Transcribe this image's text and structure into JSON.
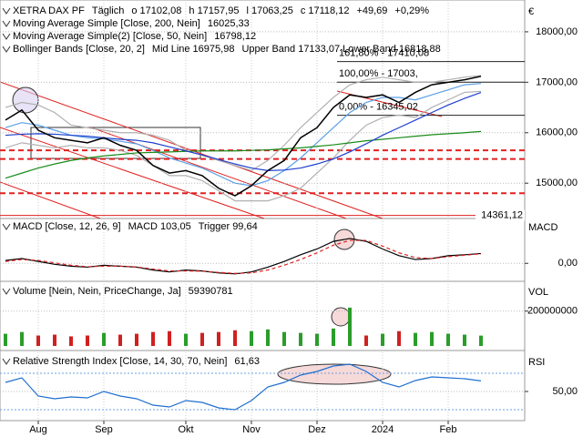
{
  "chart_data": [
    {
      "type": "line",
      "axis_label": "€",
      "categories": [
        null,
        null,
        "Aug",
        null,
        null,
        null,
        "Sep",
        null,
        null,
        null,
        null,
        "Okt",
        null,
        null,
        null,
        "Nov",
        null,
        null,
        null,
        "Dez",
        null,
        null,
        null,
        "2024",
        null,
        null,
        null,
        "Feb",
        null,
        null
      ],
      "legend": [
        [
          {
            "text": "XETRA DAX PF",
            "color": "#000000"
          },
          {
            "text": "Täglich",
            "color": "#000000"
          },
          {
            "text": "o 17102,08",
            "color": "#1a8c1a"
          },
          {
            "text": "h 17157,95",
            "color": "#1a8c1a"
          },
          {
            "text": "l 17063,25",
            "color": "#1a8c1a"
          },
          {
            "text": "c 17118,12",
            "color": "#1a8c1a"
          },
          {
            "text": "+49,69",
            "color": "#1a8c1a"
          },
          {
            "text": "+0,29%",
            "color": "#1a8c1a"
          }
        ],
        [
          {
            "text": "Moving Average Simple  [Close, 200, Nein]",
            "color": "#000000"
          },
          {
            "text": "16025,33",
            "color": "#1a8c1a"
          }
        ],
        [
          {
            "text": "Moving Average Simple(2)  [Close, 50, Nein]",
            "color": "#000000"
          },
          {
            "text": "16798,12",
            "color": "#1f3fcf"
          }
        ],
        [
          {
            "text": "Bollinger Bands  [Close, 20, 2]",
            "color": "#000000"
          },
          {
            "text": "Mid Line  16975,98",
            "color": "#3a8ee6"
          },
          {
            "text": "Upper Band  17133,07  Lower Band  16818,88",
            "color": "#aaaaaa"
          }
        ]
      ],
      "series": [
        {
          "color": "#b0b0b0",
          "values": [
            16500,
            16600,
            16550,
            16400,
            16150,
            16100,
            16050,
            16000,
            16000,
            15950,
            15850,
            15650,
            15550,
            15450,
            15350,
            15250,
            15450,
            15750,
            16100,
            16400,
            16700,
            16950,
            17050,
            17100,
            17050,
            17000,
            17000,
            17050,
            17100,
            17133.07
          ]
        },
        {
          "color": "#b0b0b0",
          "values": [
            15700,
            15800,
            15750,
            15700,
            15750,
            15700,
            15700,
            15650,
            15550,
            15350,
            15150,
            15150,
            15050,
            14850,
            14650,
            14650,
            14650,
            14750,
            14900,
            15200,
            15500,
            15850,
            16150,
            16300,
            16350,
            16300,
            16500,
            16650,
            16800,
            16818.88
          ]
        },
        {
          "color": "#5aa0e6",
          "values": [
            16100,
            16200,
            16150,
            16050,
            15950,
            15900,
            15880,
            15830,
            15780,
            15650,
            15500,
            15400,
            15300,
            15150,
            15000,
            14950,
            15050,
            15250,
            15500,
            15800,
            16100,
            16400,
            16600,
            16700,
            16700,
            16650,
            16750,
            16850,
            16950,
            16975.98
          ]
        },
        {
          "color": "#1a8c1a",
          "values": [
            15100,
            15200,
            15300,
            15380,
            15450,
            15500,
            15540,
            15570,
            15600,
            15610,
            15620,
            15630,
            15640,
            15640,
            15640,
            15650,
            15660,
            15680,
            15700,
            15730,
            15760,
            15800,
            15840,
            15870,
            15900,
            15930,
            15960,
            15980,
            16000,
            16025.33
          ]
        },
        {
          "color": "#1f3fcf",
          "values": [
            15950,
            15970,
            15980,
            15970,
            15950,
            15930,
            15900,
            15870,
            15850,
            15800,
            15720,
            15640,
            15560,
            15470,
            15380,
            15300,
            15250,
            15260,
            15300,
            15380,
            15480,
            15620,
            15780,
            15950,
            16100,
            16250,
            16400,
            16550,
            16680,
            16798.12
          ]
        },
        {
          "color": "#000000",
          "values": [
            16250,
            16450,
            16050,
            15900,
            15850,
            15800,
            15900,
            15750,
            15650,
            15350,
            15200,
            15250,
            15150,
            14900,
            14750,
            14950,
            15250,
            15450,
            15900,
            16100,
            16500,
            16750,
            16700,
            16750,
            16600,
            16800,
            16950,
            17000,
            17050,
            17118.12
          ]
        }
      ],
      "ylim": [
        14300,
        18540
      ],
      "yticks": [
        {
          "value": 15000,
          "label": "15000,00"
        },
        {
          "value": 16000,
          "label": "16000,00"
        },
        {
          "value": 17000,
          "label": "17000,00"
        },
        {
          "value": 18000,
          "label": "18000,00"
        }
      ],
      "levels": [
        {
          "value": 15650,
          "style": "dashed",
          "color": "#e02020"
        },
        {
          "value": 15480,
          "style": "dashed",
          "color": "#e02020"
        },
        {
          "value": 14800,
          "style": "dashed",
          "color": "#e02020"
        },
        {
          "value": 14361.12,
          "style": "solid",
          "color": "#e02020",
          "label": "14361,12"
        }
      ],
      "fib_levels": [
        {
          "value": 17410.08,
          "label": "161,80% - 17410,08"
        },
        {
          "value": 17003,
          "label": "100,00% - 17003,"
        },
        {
          "value": 16345.02,
          "label": "0,00% - 16345,02"
        }
      ]
    },
    {
      "type": "line",
      "axis_label": "MACD",
      "legend": [
        [
          {
            "text": "MACD  [Close, 12, 26, 9]",
            "color": "#000000"
          },
          {
            "text": "MACD  103,05",
            "color": "#000000"
          },
          {
            "text": "Trigger  99,64",
            "color": "#e02020"
          }
        ]
      ],
      "series": [
        {
          "color": "#000000",
          "values": [
            30,
            50,
            20,
            -10,
            -30,
            -40,
            -20,
            -30,
            -40,
            -70,
            -90,
            -70,
            -80,
            -100,
            -110,
            -90,
            -40,
            20,
            90,
            150,
            230,
            260,
            230,
            150,
            80,
            40,
            50,
            80,
            90,
            103.05
          ]
        },
        {
          "color": "#e02020",
          "dashed": true,
          "values": [
            20,
            40,
            30,
            5,
            -20,
            -35,
            -30,
            -30,
            -38,
            -60,
            -80,
            -80,
            -82,
            -95,
            -105,
            -100,
            -70,
            -20,
            40,
            110,
            190,
            240,
            240,
            180,
            110,
            60,
            50,
            70,
            85,
            99.64
          ]
        }
      ],
      "ylim": [
        -150,
        450
      ],
      "yticks": [
        {
          "value": 0,
          "label": "0,00"
        }
      ]
    },
    {
      "type": "bar",
      "axis_label": "VOL",
      "legend": [
        [
          {
            "text": "Volume  [Nein, Nein, PriceChange, Ja]",
            "color": "#000000"
          },
          {
            "text": "59390781",
            "color": "#1a8c1a"
          }
        ]
      ],
      "values": [
        70000000,
        80000000,
        60000000,
        65000000,
        55000000,
        60000000,
        75000000,
        65000000,
        70000000,
        80000000,
        85000000,
        70000000,
        75000000,
        80000000,
        90000000,
        85000000,
        95000000,
        80000000,
        75000000,
        70000000,
        100000000,
        220000000,
        60000000,
        70000000,
        85000000,
        75000000,
        80000000,
        70000000,
        65000000,
        59390781
      ],
      "ylim": [
        0,
        350000000
      ],
      "yticks": [
        200000000
      ]
    },
    {
      "type": "line",
      "axis_label": "RSI",
      "legend": [
        [
          {
            "text": "Relative Strength Index  [Close, 14, 30, 70, Nein]",
            "color": "#000000"
          },
          {
            "text": "61,63",
            "color": "#1f6fd0"
          }
        ]
      ],
      "series": [
        {
          "color": "#1f6fd0",
          "values": [
            60,
            65,
            45,
            42,
            44,
            43,
            50,
            45,
            42,
            35,
            33,
            40,
            38,
            32,
            30,
            40,
            55,
            60,
            68,
            72,
            78,
            80,
            72,
            60,
            55,
            62,
            66,
            65,
            64,
            61.63
          ]
        }
      ],
      "ylim": [
        20,
        90
      ],
      "yticks": [
        {
          "value": 50,
          "label": "50,00"
        }
      ],
      "levels": [
        {
          "value": 70,
          "style": "dotted",
          "color": "#6aa0e0"
        },
        {
          "value": 30,
          "style": "dotted",
          "color": "#6aa0e0"
        }
      ]
    }
  ]
}
